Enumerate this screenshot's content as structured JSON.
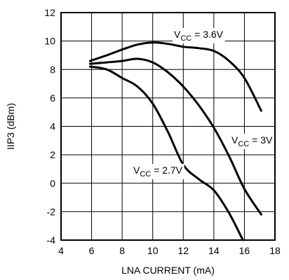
{
  "chart_data": {
    "type": "line",
    "title": "",
    "xlabel": "LNA CURRENT (mA)",
    "ylabel": "IIP3 (dBm)",
    "xlim": [
      4,
      18
    ],
    "ylim": [
      -4,
      12
    ],
    "xticks": [
      "4",
      "6",
      "8",
      "10",
      "12",
      "14",
      "16",
      "18"
    ],
    "yticks": [
      "12",
      "10",
      "8",
      "6",
      "4",
      "2",
      "0",
      "-2",
      "-4"
    ],
    "grid": true,
    "series": [
      {
        "name": "VCC = 3.6V",
        "label_main": "V",
        "label_sub": "CC",
        "label_rest": " = 3.6V",
        "x": [
          5.9,
          7,
          8,
          9,
          10,
          11,
          12,
          13,
          14,
          15,
          16,
          17.1
        ],
        "y": [
          8.6,
          9.0,
          9.4,
          9.75,
          9.9,
          9.8,
          9.6,
          9.5,
          9.3,
          8.6,
          7.4,
          5.1
        ]
      },
      {
        "name": "VCC = 3V",
        "label_main": "V",
        "label_sub": "CC",
        "label_rest": " = 3V",
        "x": [
          5.9,
          7,
          8,
          9,
          10,
          11,
          12,
          13,
          14,
          15,
          16,
          17.1
        ],
        "y": [
          8.4,
          8.5,
          8.6,
          8.75,
          8.5,
          7.8,
          6.8,
          5.5,
          3.9,
          1.9,
          -0.4,
          -2.2
        ]
      },
      {
        "name": "VCC = 2.7V",
        "label_main": "V",
        "label_sub": "CC",
        "label_rest": " = 2.7V",
        "x": [
          5.9,
          7,
          8,
          9,
          10,
          11,
          12,
          13,
          14,
          15,
          15.9
        ],
        "y": [
          8.2,
          8.0,
          7.4,
          6.8,
          5.6,
          3.6,
          1.3,
          0.3,
          -0.5,
          -2.1,
          -4.0
        ]
      }
    ]
  }
}
